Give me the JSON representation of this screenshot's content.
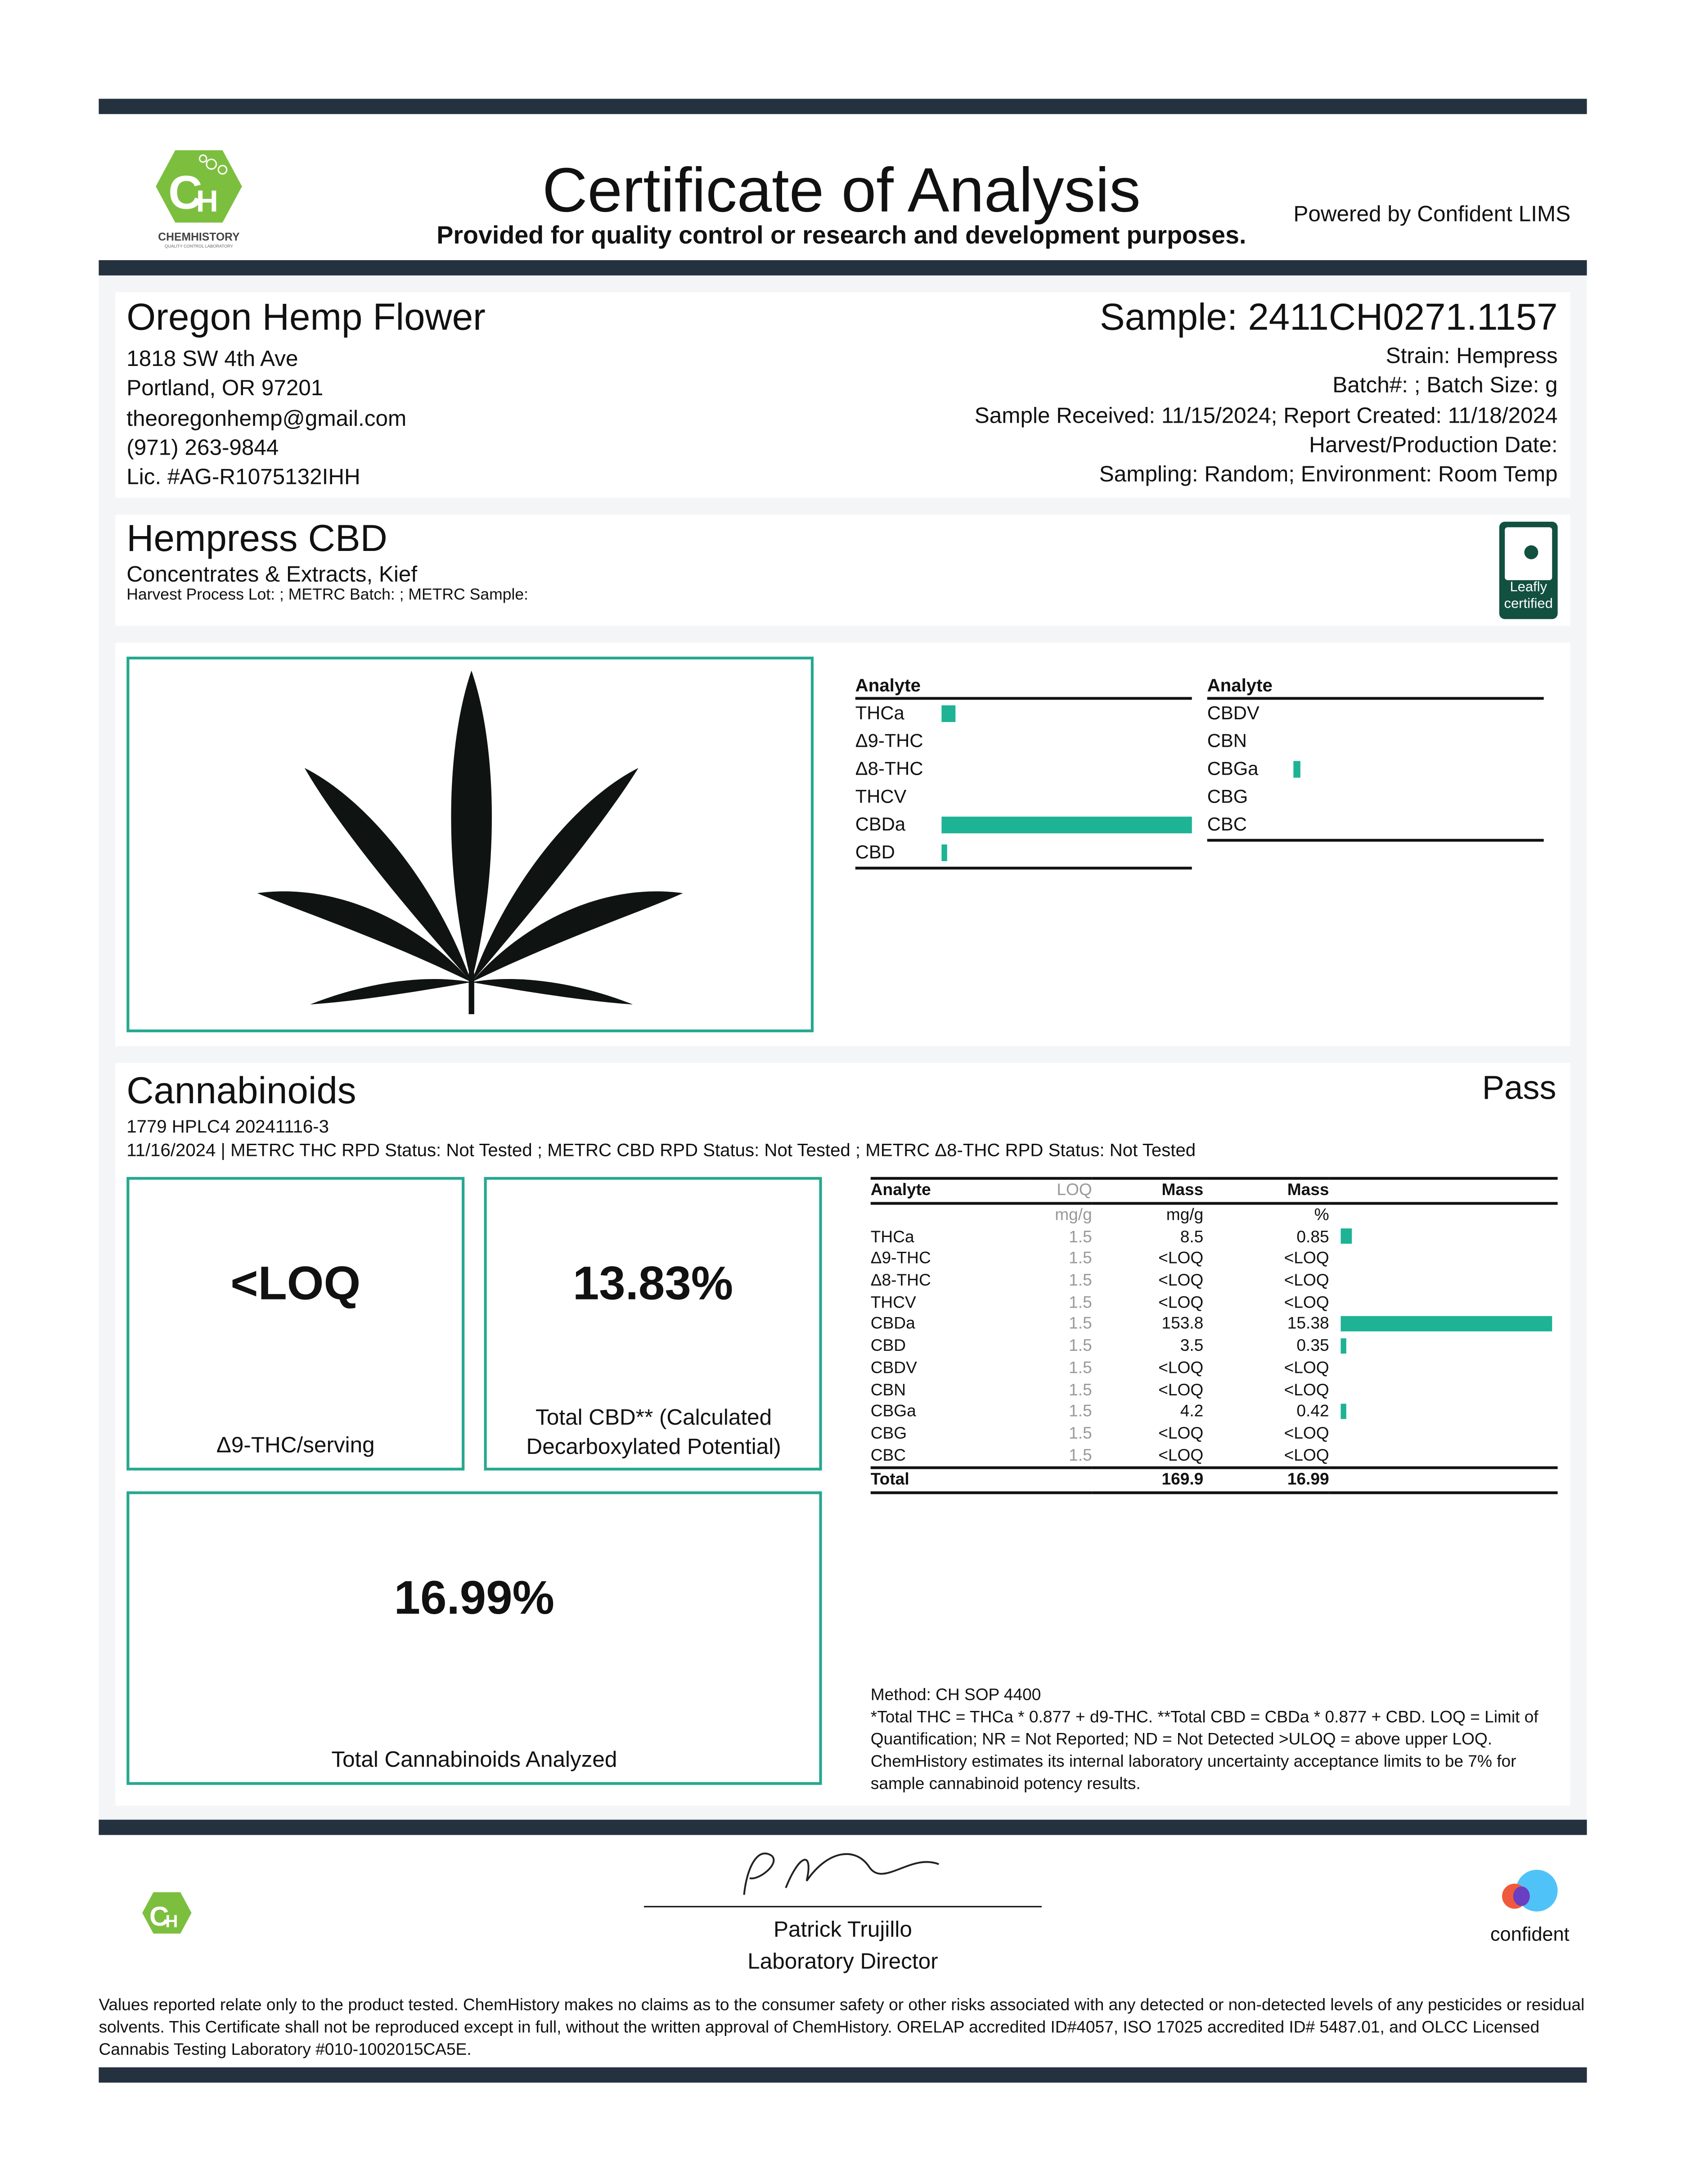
{
  "header": {
    "title": "Certificate of Analysis",
    "subtitle": "Provided for quality control or research and development purposes.",
    "powered_by": "Powered by Confident LIMS",
    "lab_logo_text": "CHEMHISTORY",
    "lab_logo_tagline": "QUALITY CONTROL LABORATORY"
  },
  "client": {
    "name": "Oregon Hemp Flower",
    "address1": "1818 SW 4th Ave",
    "address2": "Portland, OR 97201",
    "email": "theoregonhemp@gmail.com",
    "phone": "(971) 263-9844",
    "license": "Lic. #AG-R1075132IHH"
  },
  "sample": {
    "id": "Sample: 2411CH0271.1157",
    "strain": "Strain: Hempress",
    "batch": "Batch#: ; Batch Size:  g",
    "dates": "Sample Received: 11/15/2024; Report Created: 11/18/2024",
    "harvest": "Harvest/Production Date:",
    "sampling": "Sampling: Random; Environment: Room Temp"
  },
  "product": {
    "name": "Hempress CBD",
    "category": "Concentrates & Extracts, Kief",
    "lots": "Harvest Process Lot: ; METRC Batch: ; METRC Sample:",
    "badge": "Leafly certified"
  },
  "summary_chart": {
    "header": "Analyte",
    "left": [
      {
        "name": "THCa",
        "pct": 0.85
      },
      {
        "name": "Δ9-THC",
        "pct": 0
      },
      {
        "name": "Δ8-THC",
        "pct": 0
      },
      {
        "name": "THCV",
        "pct": 0
      },
      {
        "name": "CBDa",
        "pct": 15.38
      },
      {
        "name": "CBD",
        "pct": 0.35
      }
    ],
    "right": [
      {
        "name": "CBDV",
        "pct": 0
      },
      {
        "name": "CBN",
        "pct": 0
      },
      {
        "name": "CBGa",
        "pct": 0.42
      },
      {
        "name": "CBG",
        "pct": 0
      },
      {
        "name": "CBC",
        "pct": 0
      }
    ],
    "bar_color": "#1db394"
  },
  "cannabinoids": {
    "title": "Cannabinoids",
    "status": "Pass",
    "run": "1779 HPLC4 20241116-3",
    "meta": "11/16/2024 | METRC THC RPD Status: Not Tested ; METRC CBD RPD Status: Not Tested ; METRC Δ8-THC RPD Status: Not Tested",
    "thc_value": "<LOQ",
    "thc_label": "Δ9-THC/serving",
    "cbd_value": "13.83%",
    "cbd_label": "Total CBD** (Calculated Decarboxylated Potential)",
    "total_value": "16.99%",
    "total_label": "Total Cannabinoids Analyzed",
    "table": {
      "headers": [
        "Analyte",
        "LOQ",
        "Mass",
        "Mass"
      ],
      "units": [
        "",
        "mg/g",
        "mg/g",
        "%"
      ],
      "rows": [
        [
          "THCa",
          "1.5",
          "8.5",
          "0.85"
        ],
        [
          "Δ9-THC",
          "1.5",
          "<LOQ",
          "<LOQ"
        ],
        [
          "Δ8-THC",
          "1.5",
          "<LOQ",
          "<LOQ"
        ],
        [
          "THCV",
          "1.5",
          "<LOQ",
          "<LOQ"
        ],
        [
          "CBDa",
          "1.5",
          "153.8",
          "15.38"
        ],
        [
          "CBD",
          "1.5",
          "3.5",
          "0.35"
        ],
        [
          "CBDV",
          "1.5",
          "<LOQ",
          "<LOQ"
        ],
        [
          "CBN",
          "1.5",
          "<LOQ",
          "<LOQ"
        ],
        [
          "CBGa",
          "1.5",
          "4.2",
          "0.42"
        ],
        [
          "CBG",
          "1.5",
          "<LOQ",
          "<LOQ"
        ],
        [
          "CBC",
          "1.5",
          "<LOQ",
          "<LOQ"
        ]
      ],
      "total": [
        "Total",
        "",
        "169.9",
        "16.99"
      ]
    },
    "method": "Method: CH SOP 4400",
    "notes": "*Total THC = THCa * 0.877 + d9-THC. **Total CBD = CBDa * 0.877 + CBD. LOQ = Limit of Quantification; NR = Not Reported; ND = Not Detected >ULOQ = above upper LOQ. ChemHistory estimates its internal laboratory uncertainty acceptance limits to be 7% for sample cannabinoid potency results."
  },
  "signature": {
    "name": "Patrick Trujillo",
    "title": "Laboratory Director"
  },
  "footer": {
    "confident": "confident",
    "disclaimer": "Values reported relate only to the product tested. ChemHistory makes no claims as to the consumer safety or other risks associated with any detected or non-detected levels of any pesticides or residual solvents. This Certificate shall not be reproduced except in full, without the written approval of ChemHistory.  ORELAP accredited ID#4057, ISO 17025 accredited ID# 5487.01, and OLCC Licensed Cannabis Testing Laboratory #010-1002015CA5E."
  }
}
